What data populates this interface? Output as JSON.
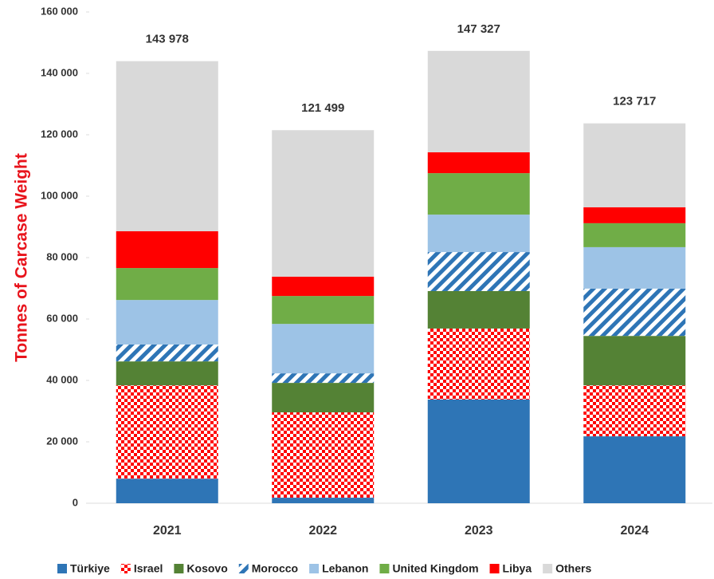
{
  "chart_data": {
    "type": "stacked_bar",
    "y_label": "Tonnes of Carcase Weight",
    "categories": [
      "2021",
      "2022",
      "2023",
      "2024"
    ],
    "series": [
      {
        "name": "Türkiye",
        "color": "#2e75b6",
        "values": [
          8000,
          1800,
          33800,
          21800
        ]
      },
      {
        "name": "Israel",
        "color": "#ff0000",
        "pattern": "checker",
        "values": [
          30400,
          27800,
          23100,
          16600
        ]
      },
      {
        "name": "Kosovo",
        "color": "#548235",
        "values": [
          7800,
          9600,
          12200,
          16100
        ]
      },
      {
        "name": "Morocco",
        "color": "#2e75b6",
        "pattern": "diagonal",
        "values": [
          5500,
          3100,
          12700,
          15400
        ]
      },
      {
        "name": "Lebanon",
        "color": "#9dc3e6",
        "values": [
          14500,
          16100,
          12200,
          13500
        ]
      },
      {
        "name": "United Kingdom",
        "color": "#70ad47",
        "values": [
          10400,
          9100,
          13500,
          7800
        ]
      },
      {
        "name": "Libya",
        "color": "#ff0000",
        "values": [
          12000,
          6300,
          6800,
          5200
        ]
      },
      {
        "name": "Others",
        "color": "#d9d9d9",
        "values": [
          55378,
          47699,
          33027,
          27317
        ]
      }
    ],
    "totals": [
      143978,
      121499,
      147327,
      123717
    ],
    "totals_labels": [
      "143 978",
      "121 499",
      "147 327",
      "123 717"
    ],
    "ylim": [
      0,
      160000
    ],
    "yticks": [
      0,
      {
        "value": 20000,
        "label": "20 000"
      },
      {
        "value": 40000,
        "label": "40 000"
      },
      {
        "value": 60000,
        "label": "60 000"
      },
      {
        "value": 80000,
        "label": "80 000"
      },
      {
        "value": 100000,
        "label": "100 000"
      },
      {
        "value": 120000,
        "label": "120 000"
      },
      {
        "value": 140000,
        "label": "140 000"
      },
      {
        "value": 160000,
        "label": "160 000"
      }
    ],
    "legend": "bottom"
  }
}
